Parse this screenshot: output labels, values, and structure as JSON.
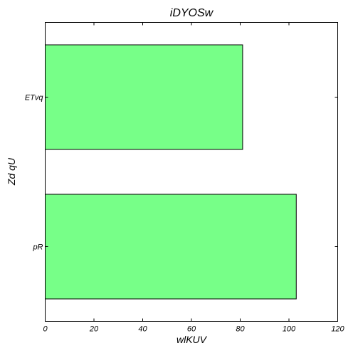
{
  "chart_data": {
    "type": "bar",
    "orientation": "horizontal",
    "title": "iDYOSw",
    "xlabel": "wlKUV",
    "ylabel": "Zd qU",
    "categories": [
      "pR",
      "ETvq"
    ],
    "values": [
      103,
      81
    ],
    "xlim": [
      0,
      120
    ],
    "xticks": [
      0,
      20,
      40,
      60,
      80,
      100,
      120
    ],
    "grid": false,
    "legend": "none",
    "bar_color": "#77ff88",
    "edge_color": "#000000"
  }
}
